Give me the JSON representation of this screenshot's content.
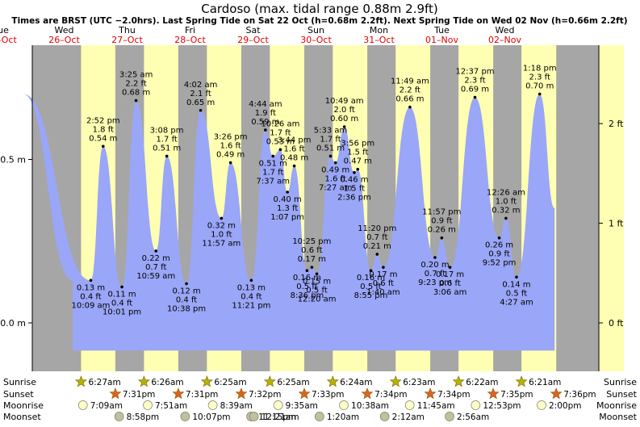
{
  "header": {
    "title": "Cardoso (max. tidal range 0.88m 2.9ft)",
    "subtitle": "Times are BRST (UTC −2.0hrs). Last Spring Tide on Sat 22 Oct (h=0.68m 2.2ft). Next Spring Tide on Wed 02 Nov (h=0.66m 2.2ft)"
  },
  "days": [
    {
      "dow": "Tue",
      "date": "25–Oct",
      "sunrise": "",
      "sunset": "",
      "moonrise": "",
      "moonset": ""
    },
    {
      "dow": "Wed",
      "date": "26–Oct",
      "sunrise": "6:27am",
      "sunset": "7:31pm",
      "moonrise": "7:09am",
      "moonset": "8:58pm"
    },
    {
      "dow": "Thu",
      "date": "27–Oct",
      "sunrise": "6:26am",
      "sunset": "7:31pm",
      "moonrise": "7:51am",
      "moonset": "10:07pm"
    },
    {
      "dow": "Fri",
      "date": "28–Oct",
      "sunrise": "6:25am",
      "sunset": "7:32pm",
      "moonrise": "8:39am",
      "moonset": "11:15pm"
    },
    {
      "dow": "Sat",
      "date": "29–Oct",
      "sunrise": "6:25am",
      "sunset": "7:33pm",
      "moonrise": "9:35am",
      "moonset": "12:21am"
    },
    {
      "dow": "Sun",
      "date": "30–Oct",
      "sunrise": "6:24am",
      "sunset": "7:34pm",
      "moonrise": "10:38am",
      "moonset": "1:20am"
    },
    {
      "dow": "Mon",
      "date": "31–Oct",
      "sunrise": "6:23am",
      "sunset": "7:34pm",
      "moonrise": "11:45am",
      "moonset": "2:12am"
    },
    {
      "dow": "Tue",
      "date": "01–Nov",
      "sunrise": "6:22am",
      "sunset": "7:35pm",
      "moonrise": "12:53pm",
      "moonset": "2:56am"
    },
    {
      "dow": "Wed",
      "date": "02–Nov",
      "sunrise": "6:21am",
      "sunset": "7:36pm",
      "moonrise": "2:00pm",
      "moonset": ""
    }
  ],
  "row_labels": {
    "sunrise": "Sunrise",
    "sunset": "Sunset",
    "moonrise": "Moonrise",
    "moonset": "Moonset"
  },
  "chart_data": {
    "type": "area",
    "x_unit": "hours since start of Tue 25–Oct (BRST)",
    "x_range": [
      0,
      216
    ],
    "ylim": [
      -0.09,
      0.88
    ],
    "y_left_ticks": [
      {
        "value": 0.0,
        "label": "0.0 m"
      },
      {
        "value": 0.5,
        "label": "0.5 m"
      }
    ],
    "y_right_ticks": [
      {
        "value": 0.0,
        "label": "0 ft"
      },
      {
        "value": 0.3048,
        "label": "1 ft"
      },
      {
        "value": 0.6096,
        "label": "2 ft"
      }
    ],
    "colors": {
      "fill": "#9aa6f7",
      "night": "#a6a6a6",
      "day": "#ffffb3",
      "dow": "#000000",
      "date": "#e00000",
      "panel_right": "#ffffb3",
      "sun": "#b3b300",
      "sunset": "#e06020",
      "moonrise": "#ffffcc",
      "moonset": "#c0c0a0"
    },
    "tides": [
      {
        "time": "",
        "height": 0.7,
        "hours": 8.4,
        "label": [
          "",
          "",
          ""
        ],
        "show_label": false
      },
      {
        "time": "10:09 am",
        "height": 0.13,
        "ft": "0.4 ft",
        "hours": 34.15,
        "kind": "low"
      },
      {
        "time": "2:52 pm",
        "height": 0.54,
        "ft": "1.8 ft",
        "hours": 38.87,
        "kind": "high"
      },
      {
        "time": "10:01 pm",
        "height": 0.11,
        "ft": "0.4 ft",
        "hours": 46.02,
        "kind": "low"
      },
      {
        "time": "3:25 am",
        "height": 0.68,
        "ft": "2.2 ft",
        "hours": 51.42,
        "kind": "high"
      },
      {
        "time": "10:59 am",
        "height": 0.22,
        "ft": "0.7 ft",
        "hours": 59.0,
        "kind": "low"
      },
      {
        "time": "3:08 pm",
        "height": 0.51,
        "ft": "1.7 ft",
        "hours": 63.13,
        "kind": "high"
      },
      {
        "time": "10:38 pm",
        "height": 0.12,
        "ft": "0.4 ft",
        "hours": 70.63,
        "kind": "low"
      },
      {
        "time": "4:02 am",
        "height": 0.65,
        "ft": "2.1 ft",
        "hours": 76.03,
        "kind": "high"
      },
      {
        "time": "11:57 am",
        "height": 0.32,
        "ft": "1.0 ft",
        "hours": 83.95,
        "kind": "low"
      },
      {
        "time": "3:26 pm",
        "height": 0.49,
        "ft": "1.6 ft",
        "hours": 87.43,
        "kind": "high"
      },
      {
        "time": "11:21 pm",
        "height": 0.13,
        "ft": "0.4 ft",
        "hours": 95.35,
        "kind": "low"
      },
      {
        "time": "4:44 am",
        "height": 0.59,
        "ft": "1.9 ft",
        "hours": 100.73,
        "kind": "high"
      },
      {
        "time": "7:37 am",
        "height": 0.51,
        "ft": "1.7 ft",
        "hours": 103.62,
        "kind": "low"
      },
      {
        "time": "10:26 am",
        "height": 0.53,
        "ft": "1.7 ft",
        "hours": 106.43,
        "kind": "high"
      },
      {
        "time": "1:07 pm",
        "height": 0.4,
        "ft": "1.3 ft",
        "hours": 109.12,
        "kind": "low"
      },
      {
        "time": "3:44 pm",
        "height": 0.48,
        "ft": "1.6 ft",
        "hours": 111.73,
        "kind": "high"
      },
      {
        "time": "8:36 pm",
        "height": 0.16,
        "ft": "0.5 ft",
        "hours": 116.6,
        "kind": "low"
      },
      {
        "time": "10:25 pm",
        "height": 0.17,
        "ft": "0.6 ft",
        "hours": 118.42,
        "kind": "high"
      },
      {
        "time": "12:20 am",
        "height": 0.15,
        "ft": "0.5 ft",
        "hours": 120.33,
        "kind": "low"
      },
      {
        "time": "5:33 am",
        "height": 0.51,
        "ft": "1.7 ft",
        "hours": 125.55,
        "kind": "high"
      },
      {
        "time": "7:27 am",
        "height": 0.49,
        "ft": "1.6 ft",
        "hours": 127.45,
        "kind": "low"
      },
      {
        "time": "10:49 am",
        "height": 0.6,
        "ft": "2.0 ft",
        "hours": 130.82,
        "kind": "high"
      },
      {
        "time": "2:36 pm",
        "height": 0.46,
        "ft": "1.5 ft",
        "hours": 134.6,
        "kind": "low"
      },
      {
        "time": "3:56 pm",
        "height": 0.47,
        "ft": "1.5 ft",
        "hours": 135.93,
        "kind": "high"
      },
      {
        "time": "8:55 pm",
        "height": 0.16,
        "ft": "0.5 ft",
        "hours": 140.92,
        "kind": "low"
      },
      {
        "time": "11:20 pm",
        "height": 0.21,
        "ft": "0.7 ft",
        "hours": 143.33,
        "kind": "high"
      },
      {
        "time": "1:40 am",
        "height": 0.17,
        "ft": "0.6 ft",
        "hours": 145.67,
        "kind": "low"
      },
      {
        "time": "11:49 am",
        "height": 0.66,
        "ft": "2.2 ft",
        "hours": 155.82,
        "kind": "high"
      },
      {
        "time": "9:23 pm",
        "height": 0.2,
        "ft": "0.7 ft",
        "hours": 165.38,
        "kind": "low"
      },
      {
        "time": "11:57 pm",
        "height": 0.26,
        "ft": "0.9 ft",
        "hours": 167.95,
        "kind": "high"
      },
      {
        "time": "3:06 am",
        "height": 0.17,
        "ft": "0.6 ft",
        "hours": 171.1,
        "kind": "low"
      },
      {
        "time": "12:37 pm",
        "height": 0.69,
        "ft": "2.3 ft",
        "hours": 180.62,
        "kind": "high"
      },
      {
        "time": "9:52 pm",
        "height": 0.26,
        "ft": "0.9 ft",
        "hours": 189.87,
        "kind": "low"
      },
      {
        "time": "12:26 am",
        "height": 0.32,
        "ft": "1.0 ft",
        "hours": 192.43,
        "kind": "high"
      },
      {
        "time": "4:27 am",
        "height": 0.14,
        "ft": "0.5 ft",
        "hours": 196.45,
        "kind": "low"
      },
      {
        "time": "1:18 pm",
        "height": 0.7,
        "ft": "2.3 ft",
        "hours": 205.3,
        "kind": "high"
      },
      {
        "time": "",
        "height": 0.35,
        "hours": 211.0,
        "show_label": false
      }
    ]
  }
}
